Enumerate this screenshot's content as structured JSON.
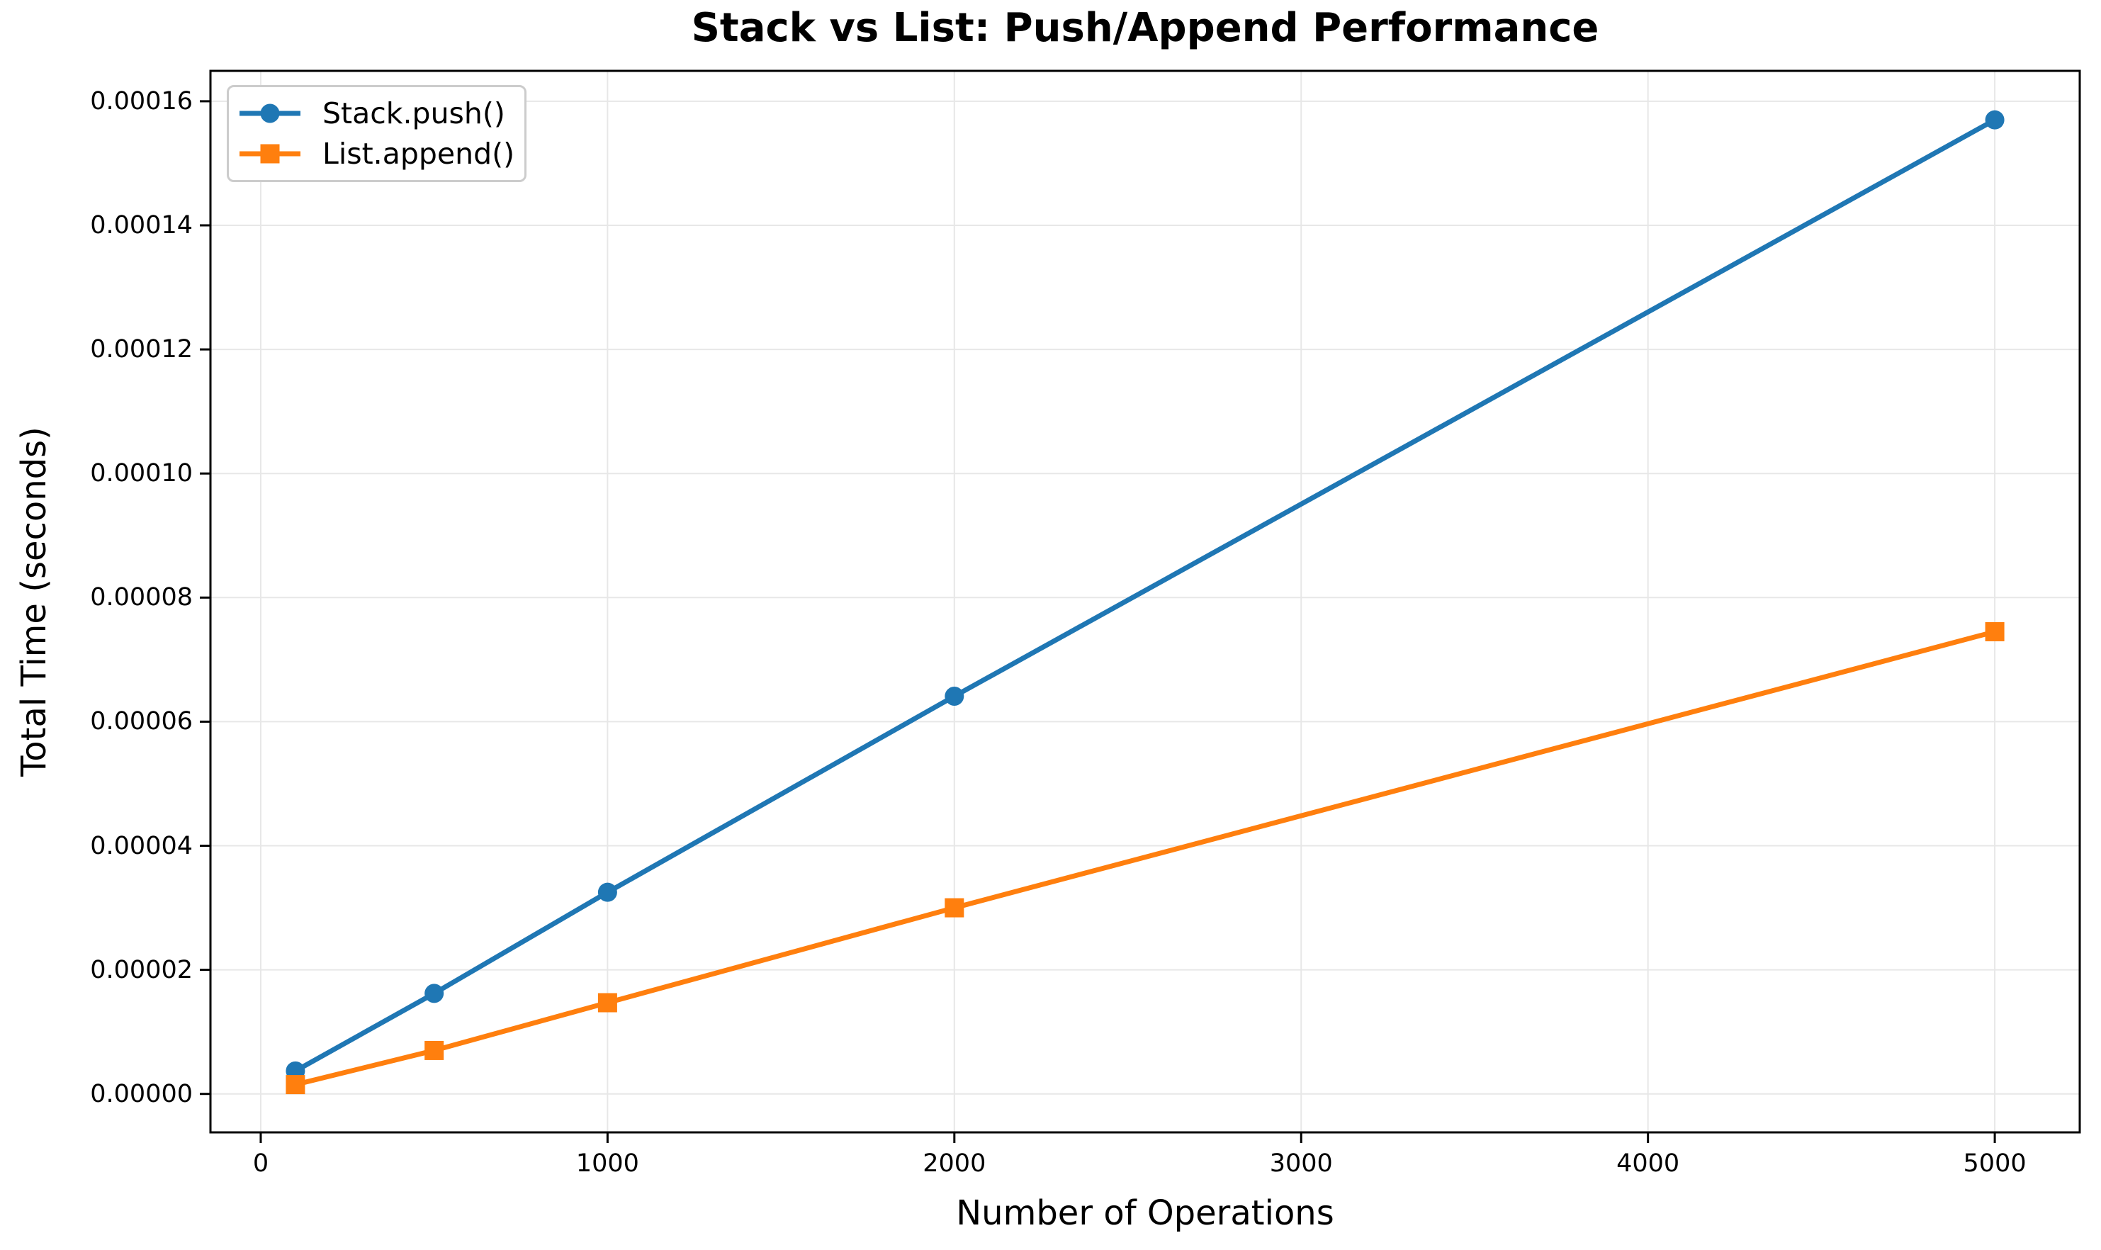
{
  "chart_data": {
    "type": "line",
    "title": "Stack vs List: Push/Append Performance",
    "xlabel": "Number of Operations",
    "ylabel": "Total Time (seconds)",
    "x": [
      100,
      500,
      1000,
      2000,
      5000
    ],
    "series": [
      {
        "name": "Stack.push()",
        "color": "#1f77b4",
        "marker": "circle",
        "values": [
          3.7e-06,
          1.62e-05,
          3.25e-05,
          6.41e-05,
          0.000157
        ]
      },
      {
        "name": "List.append()",
        "color": "#ff7f0e",
        "marker": "square",
        "values": [
          1.5e-06,
          7e-06,
          1.47e-05,
          3e-05,
          7.45e-05
        ]
      }
    ],
    "xlim": [
      -145,
      5245
    ],
    "ylim": [
      -6.2e-06,
      0.0001649
    ],
    "xticks": {
      "values": [
        0,
        1000,
        2000,
        3000,
        4000,
        5000
      ],
      "labels": [
        "0",
        "1000",
        "2000",
        "3000",
        "4000",
        "5000"
      ]
    },
    "yticks": {
      "values": [
        0.0,
        2e-05,
        4e-05,
        6e-05,
        8e-05,
        0.0001,
        0.00012,
        0.00014,
        0.00016
      ],
      "labels": [
        "0.00000",
        "0.00002",
        "0.00004",
        "0.00006",
        "0.00008",
        "0.00010",
        "0.00012",
        "0.00014",
        "0.00016"
      ]
    },
    "grid": true,
    "legend_position": "upper left",
    "colors": {
      "background": "#ffffff",
      "grid": "#e7e7e7",
      "spine": "#000000",
      "text": "#000000",
      "legend_border": "#cccccc"
    }
  }
}
